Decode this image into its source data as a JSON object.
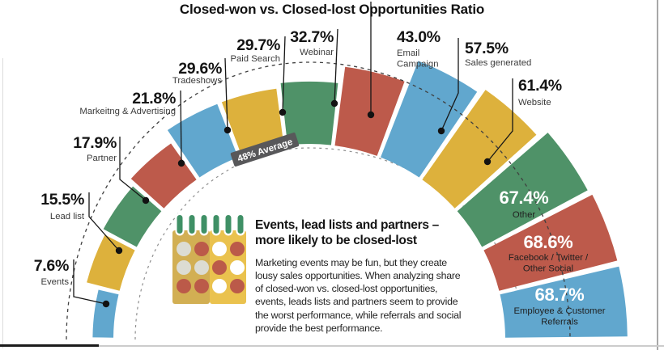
{
  "title": "Closed-won vs. Closed-lost Opportunities Ratio",
  "callout": {
    "heading": "Events, lead lists and partners –\nmore likely to be closed-lost",
    "body": "Marketing events may be fun, but they create lousy sales opportunities. When analyzing share of closed-won vs. closed-lost opportunities, events, leads lists and partners seem to provide the worst performance, while referrals and social provide the best performance.",
    "icon": "calendar"
  },
  "colors": {
    "blue": "#61a7ce",
    "yellow": "#ddb13c",
    "green": "#4f9268",
    "red": "#bd5a4b",
    "band_gray": "#58585a",
    "leader_black": "#161616",
    "calendar_left_page": "#d2af53",
    "calendar_right_page": "#eac24e",
    "calendar_pin_green": "#3f9066"
  },
  "chart_data": {
    "type": "radial-bar",
    "title": "Closed-won vs. Closed-lost Opportunities Ratio",
    "unit": "%",
    "angle_span_deg": 180,
    "average": 48,
    "average_label": "48% Average",
    "legend_position": "none",
    "grid": "dashed concentric guides",
    "segments": [
      {
        "label": "Events",
        "value": 7.6,
        "color": "#61a7ce"
      },
      {
        "label": "Lead list",
        "value": 15.5,
        "color": "#ddb13c"
      },
      {
        "label": "Partner",
        "value": 17.9,
        "color": "#4f9268"
      },
      {
        "label": "Markeitng & Advertising",
        "value": 21.8,
        "color": "#bd5a4b"
      },
      {
        "label": "Tradeshows",
        "value": 29.6,
        "color": "#61a7ce"
      },
      {
        "label": "Paid Search",
        "value": 29.7,
        "color": "#ddb13c"
      },
      {
        "label": "Webinar",
        "value": 32.7,
        "color": "#4f9268"
      },
      {
        "label": "Email\nCampaign",
        "value": 43.0,
        "color": "#bd5a4b"
      },
      {
        "label": "Sales generated",
        "value": 57.5,
        "color": "#61a7ce"
      },
      {
        "label": "Website",
        "value": 61.4,
        "color": "#ddb13c"
      },
      {
        "label": "Other",
        "value": 67.4,
        "color": "#4f9268"
      },
      {
        "label": "Facebook / Twitter /\nOther Social",
        "value": 68.6,
        "color": "#bd5a4b"
      },
      {
        "label": "Employee & Customer\nReferrals",
        "value": 68.7,
        "color": "#61a7ce"
      }
    ]
  }
}
